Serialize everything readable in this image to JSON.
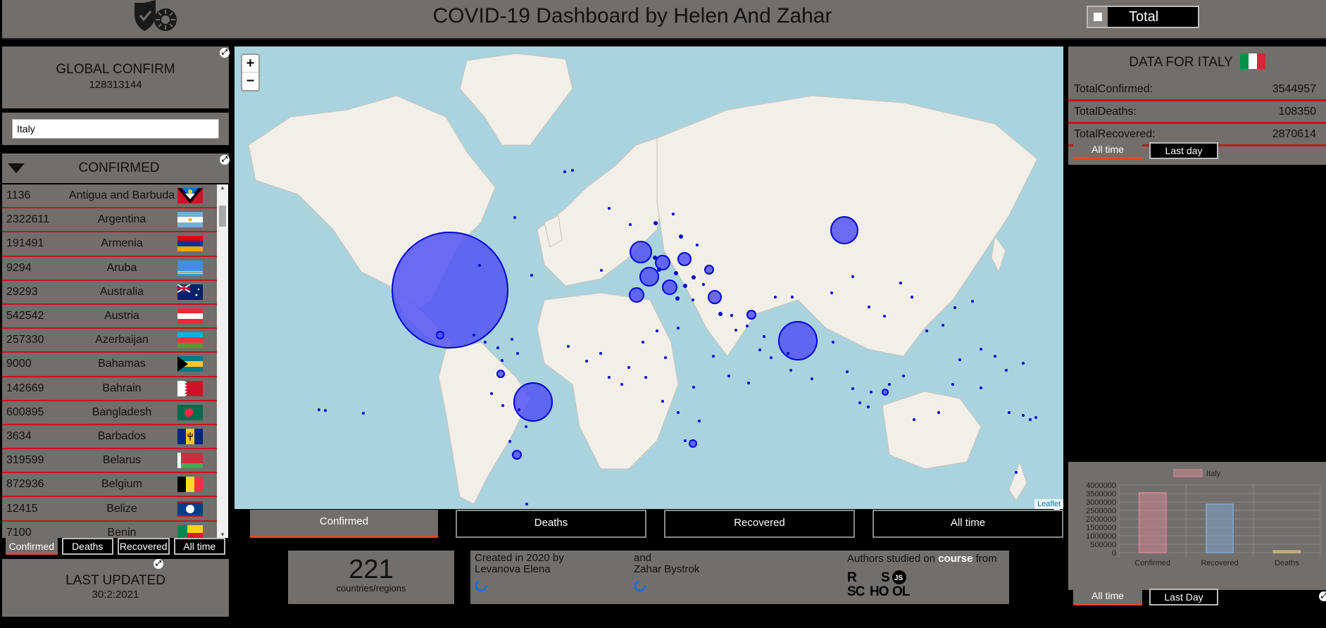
{
  "header": {
    "title": "COVID-19 Dashboard by Helen And Zahar",
    "toggle_label": "Total"
  },
  "global": {
    "title": "GLOBAL CONFIRM",
    "value": "128313144"
  },
  "search": {
    "value": "Italy"
  },
  "list": {
    "title": "CONFIRMED",
    "rows": [
      {
        "value": "1136",
        "country": "Antigua and Barbuda",
        "flag": "antigua-and-barbuda"
      },
      {
        "value": "2322611",
        "country": "Argentina",
        "flag": "argentina"
      },
      {
        "value": "191491",
        "country": "Armenia",
        "flag": "armenia"
      },
      {
        "value": "9294",
        "country": "Aruba",
        "flag": "aruba"
      },
      {
        "value": "29293",
        "country": "Australia",
        "flag": "australia"
      },
      {
        "value": "542542",
        "country": "Austria",
        "flag": "austria"
      },
      {
        "value": "257330",
        "country": "Azerbaijan",
        "flag": "azerbaijan"
      },
      {
        "value": "9000",
        "country": "Bahamas",
        "flag": "bahamas"
      },
      {
        "value": "142669",
        "country": "Bahrain",
        "flag": "bahrain"
      },
      {
        "value": "600895",
        "country": "Bangladesh",
        "flag": "bangladesh"
      },
      {
        "value": "3634",
        "country": "Barbados",
        "flag": "barbados"
      },
      {
        "value": "319599",
        "country": "Belarus",
        "flag": "belarus"
      },
      {
        "value": "872936",
        "country": "Belgium",
        "flag": "belgium"
      },
      {
        "value": "12415",
        "country": "Belize",
        "flag": "belize"
      },
      {
        "value": "7100",
        "country": "Benin",
        "flag": "benin"
      }
    ],
    "tabs": [
      "Confirmed",
      "Deaths",
      "Recovered",
      "All time"
    ]
  },
  "updated": {
    "title": "LAST UPDATED",
    "value": "30:2:2021"
  },
  "map": {
    "zoom_in": "+",
    "zoom_out": "−",
    "attribution": "Leaflet"
  },
  "map_tabs": [
    "Confirmed",
    "Deaths",
    "Recovered",
    "All time"
  ],
  "count": {
    "value": "221",
    "label": "countries/regions"
  },
  "credits": {
    "left_line1": "Created in 2020 by",
    "left_line2": "Levanova Elena",
    "mid_line1": "and",
    "mid_line2": "Zahar Bystrok",
    "right_prefix": "Authors studied on ",
    "right_bold": "course",
    "right_suffix": " from"
  },
  "country_data": {
    "title": "DATA FOR ITALY",
    "rows": [
      {
        "label": "TotalConfirmed:",
        "value": "3544957"
      },
      {
        "label": "TotalDeaths:",
        "value": "108350"
      },
      {
        "label": "TotalRecovered:",
        "value": "2870614"
      }
    ],
    "tabs": [
      "All time",
      "Last day"
    ]
  },
  "chart_tabs": [
    "All time",
    "Last Day"
  ],
  "chart_data": {
    "type": "bar",
    "categories": [
      "Confirmed",
      "Recovered",
      "Deaths"
    ],
    "series": [
      {
        "name": "Italy",
        "values": [
          3544957,
          2870614,
          108350
        ]
      }
    ],
    "colors": [
      "#d88a96",
      "#7fa9d8",
      "#d8c07f"
    ],
    "ylim": [
      0,
      4000000
    ],
    "yticks": [
      "4000000",
      "3500000",
      "3000000",
      "2500000",
      "2000000",
      "1500000",
      "1000000",
      "500000",
      "0"
    ],
    "legend": "top-center"
  }
}
